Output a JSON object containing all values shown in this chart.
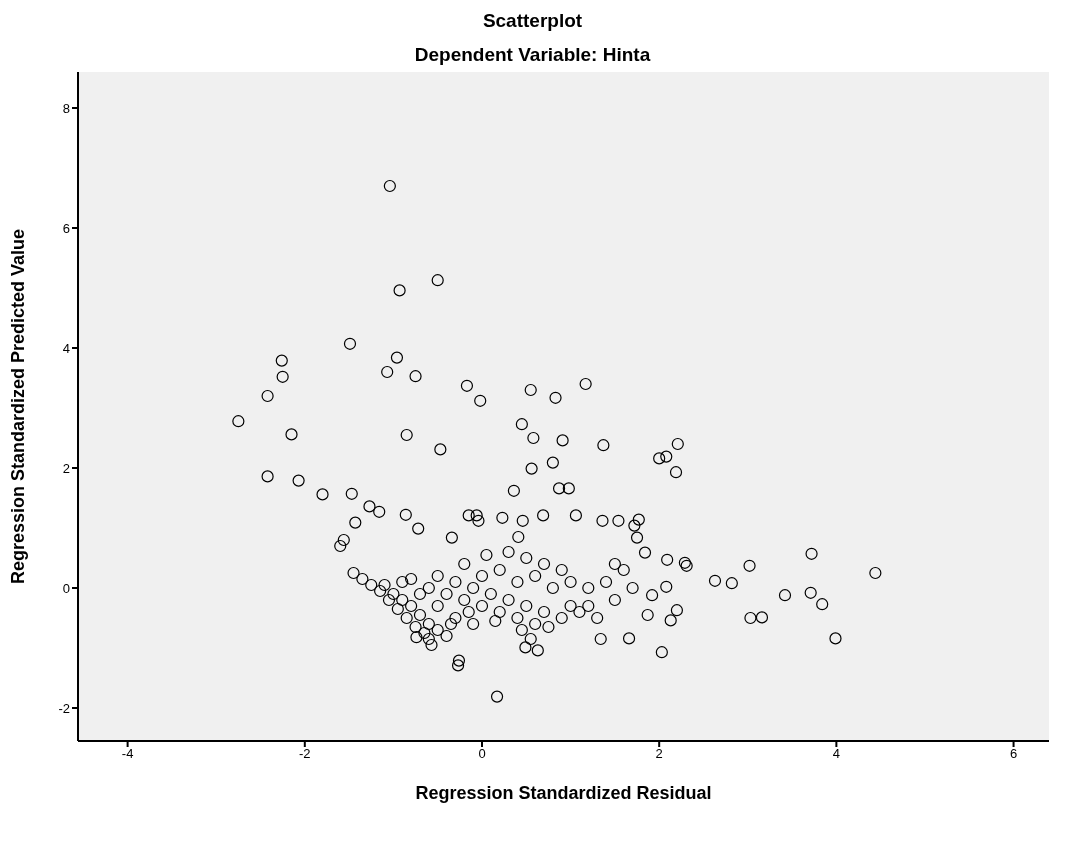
{
  "chart_data": {
    "type": "scatter",
    "title": "Scatterplot",
    "subtitle": "Dependent Variable: Hinta",
    "xlabel": "Regression Standardized Residual",
    "ylabel": "Regression Standardized Predicted Value",
    "xlim": [
      -4.56,
      6.4
    ],
    "ylim": [
      -2.55,
      8.6
    ],
    "xticks": [
      -4,
      -2,
      0,
      2,
      4,
      6
    ],
    "yticks": [
      -2,
      0,
      2,
      4,
      6,
      8
    ],
    "grid": false,
    "legend": false,
    "marker": "circle",
    "series": [
      {
        "color": "#000000",
        "x": [
          -1.04,
          -0.5,
          -0.93,
          -1.49,
          -2.26,
          -0.96,
          -2.25,
          -1.07,
          -0.75,
          -2.42,
          -0.17,
          -0.02,
          0.55,
          0.83,
          1.17,
          -2.75,
          -2.15,
          -0.85,
          0.45,
          0.58,
          0.91,
          1.37,
          -0.47,
          2.21,
          2.08,
          2.0,
          2.19,
          0.8,
          0.56,
          -2.42,
          -2.07,
          -1.8,
          0.36,
          0.87,
          0.98,
          -1.47,
          -1.27,
          -1.16,
          -1.43,
          -0.86,
          -0.72,
          -0.15,
          -0.06,
          -0.04,
          0.23,
          0.46,
          0.69,
          1.06,
          1.36,
          1.54,
          1.72,
          1.77,
          1.75,
          -0.34,
          0.41,
          -1.56,
          -1.6,
          1.84,
          2.29,
          2.31,
          2.63,
          2.82,
          3.02,
          3.03,
          3.16,
          3.42,
          3.71,
          3.72,
          3.84,
          3.99,
          4.44,
          2.03,
          0.17,
          -0.26,
          -0.27,
          1.66,
          1.34,
          2.2,
          2.13,
          2.08,
          2.09,
          1.92,
          1.87,
          0.63,
          0.49,
          -0.57,
          -0.74,
          -1.45,
          -1.35,
          -1.25,
          -1.15,
          -1.05,
          -0.95,
          -0.85,
          -0.75,
          -0.65,
          -1.1,
          -1.0,
          -0.9,
          -0.8,
          -0.7,
          -0.6,
          -0.5,
          -0.4,
          -0.9,
          -0.7,
          -0.5,
          -0.3,
          -0.1,
          -0.6,
          -0.4,
          -0.2,
          0,
          0.2,
          0.4,
          0.6,
          -0.3,
          -0.1,
          0.1,
          0.3,
          0.5,
          0.7,
          0.9,
          1.1,
          1.3,
          0,
          0.2,
          0.4,
          0.6,
          0.8,
          1.0,
          1.2,
          1.4,
          1.5,
          1.6,
          1.7,
          1.5,
          1.2,
          0.9,
          0.7,
          0.5,
          0.3,
          0.05,
          -0.2,
          -0.5,
          -0.8,
          -0.35,
          -0.15,
          0.15,
          0.45,
          0.75,
          1.0,
          0.55,
          -0.6
        ],
        "values": [
          6.7,
          5.13,
          4.96,
          4.07,
          3.79,
          3.84,
          3.52,
          3.6,
          3.53,
          3.2,
          3.37,
          3.12,
          3.3,
          3.17,
          3.4,
          2.78,
          2.56,
          2.55,
          2.73,
          2.5,
          2.46,
          2.38,
          2.31,
          2.4,
          2.19,
          2.16,
          1.93,
          2.09,
          1.99,
          1.86,
          1.79,
          1.56,
          1.62,
          1.66,
          1.66,
          1.57,
          1.36,
          1.27,
          1.09,
          1.22,
          0.99,
          1.21,
          1.21,
          1.12,
          1.17,
          1.12,
          1.21,
          1.21,
          1.12,
          1.12,
          1.04,
          1.14,
          0.84,
          0.84,
          0.85,
          0.8,
          0.7,
          0.59,
          0.42,
          0.37,
          0.12,
          0.08,
          0.37,
          -0.5,
          -0.49,
          -0.12,
          -0.08,
          0.57,
          -0.27,
          -0.84,
          0.25,
          -1.07,
          -1.81,
          -1.21,
          -1.29,
          -0.84,
          -0.85,
          -0.37,
          -0.54,
          0.02,
          0.47,
          -0.12,
          -0.45,
          -1.04,
          -0.99,
          -0.95,
          -0.82,
          0.25,
          0.15,
          0.05,
          -0.05,
          -0.2,
          -0.35,
          -0.5,
          -0.65,
          -0.75,
          0.05,
          -0.1,
          -0.2,
          -0.3,
          -0.45,
          -0.6,
          -0.7,
          -0.8,
          0.1,
          -0.1,
          -0.3,
          -0.5,
          -0.6,
          0.0,
          -0.1,
          -0.2,
          -0.3,
          -0.4,
          -0.5,
          -0.6,
          0.1,
          0.0,
          -0.1,
          -0.2,
          -0.3,
          -0.4,
          -0.5,
          -0.4,
          -0.5,
          0.2,
          0.3,
          0.1,
          0.2,
          0.0,
          0.1,
          0.0,
          0.1,
          -0.2,
          0.3,
          0.0,
          0.4,
          -0.3,
          0.3,
          0.4,
          0.5,
          0.6,
          0.55,
          0.4,
          0.2,
          0.15,
          -0.6,
          -0.4,
          -0.55,
          -0.7,
          -0.65,
          -0.3,
          -0.85,
          -0.85
        ]
      }
    ]
  }
}
